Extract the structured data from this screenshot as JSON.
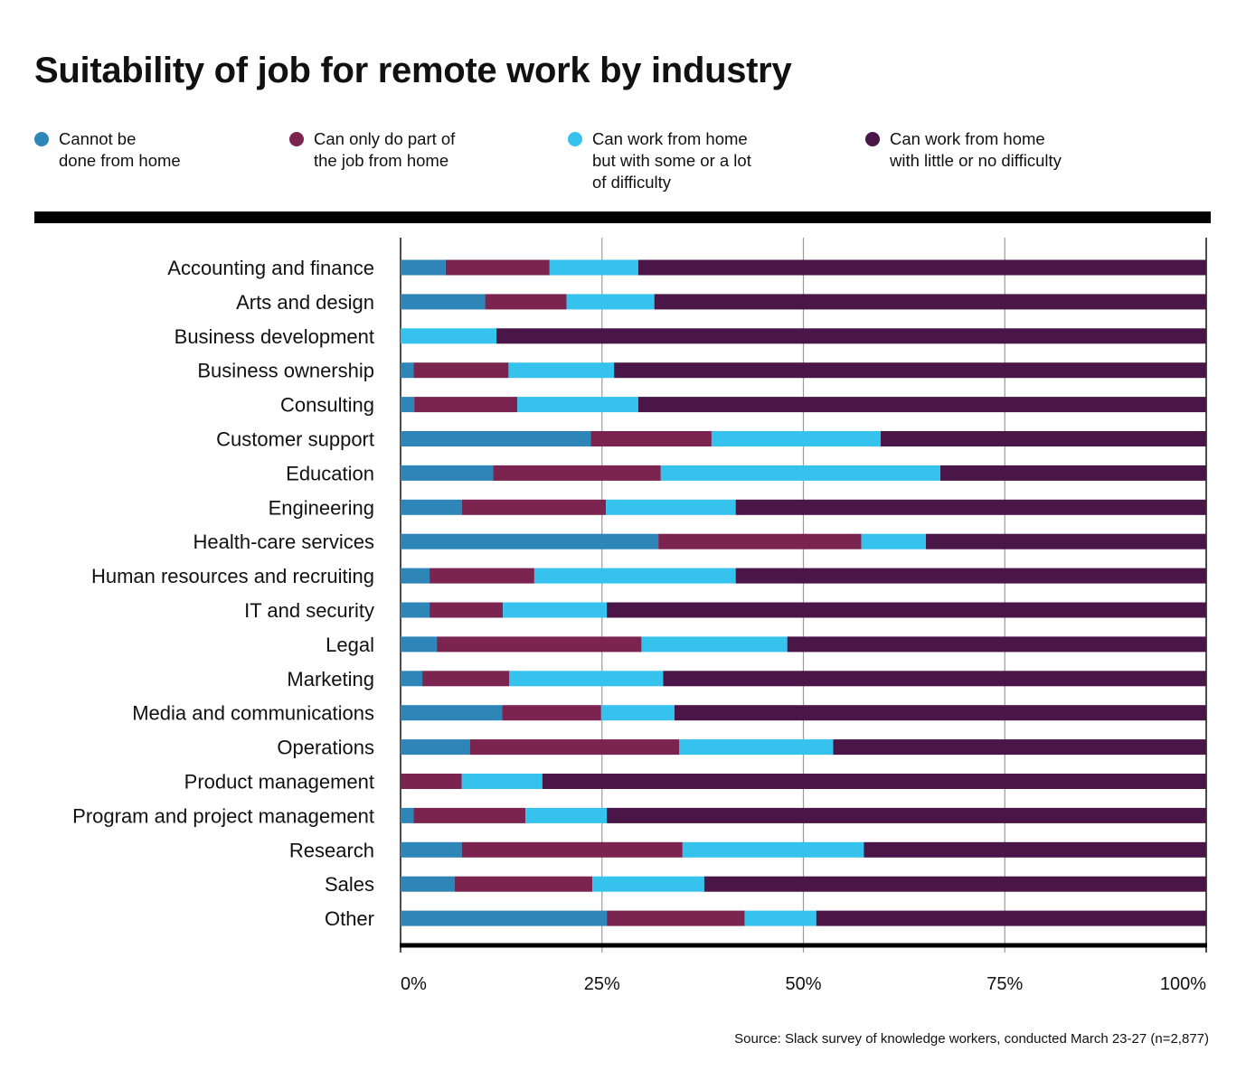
{
  "title": "Suitability of job for remote work by industry",
  "legend": [
    {
      "label": "Cannot be\ndone from home",
      "color": "#2e86b8"
    },
    {
      "label": "Can only do part of\nthe job from home",
      "color": "#7b2450"
    },
    {
      "label": "Can work from home\nbut with some or a lot\nof difficulty",
      "color": "#35c3ee"
    },
    {
      "label": "Can work from home\nwith little or no difficulty",
      "color": "#4a1547"
    }
  ],
  "source": "Source: Slack survey of knowledge workers, conducted March 23-27 (n=2,877)",
  "chart_data": {
    "type": "bar",
    "orientation": "horizontal",
    "stacked": true,
    "title": "Suitability of job for remote work by industry",
    "xlabel": "",
    "ylabel": "",
    "xlim": [
      0,
      100
    ],
    "xticks": [
      0,
      25,
      50,
      75,
      100
    ],
    "xtick_labels": [
      "0%",
      "25%",
      "50%",
      "75%",
      "100%"
    ],
    "grid": true,
    "categories": [
      "Accounting and finance",
      "Arts and design",
      "Business development",
      "Business ownership",
      "Consulting",
      "Customer support",
      "Education",
      "Engineering",
      "Health-care services",
      "Human resources and recruiting",
      "IT and security",
      "Legal",
      "Marketing",
      "Media and communications",
      "Operations",
      "Product management",
      "Program and project management",
      "Research",
      "Sales",
      "Other"
    ],
    "series": [
      {
        "name": "Cannot be done from home",
        "color": "#2e86b8",
        "values": [
          5.6,
          10.5,
          0,
          1.6,
          1.7,
          23.6,
          11.5,
          7.6,
          32.0,
          3.6,
          3.6,
          4.5,
          2.7,
          12.6,
          8.6,
          0,
          1.6,
          7.6,
          6.7,
          25.6
        ]
      },
      {
        "name": "Can only do part of the job from home",
        "color": "#7b2450",
        "values": [
          12.9,
          10.1,
          0,
          11.8,
          12.8,
          15.0,
          20.8,
          17.9,
          25.2,
          13.0,
          9.1,
          25.4,
          10.8,
          12.3,
          26.0,
          7.6,
          13.9,
          27.4,
          17.1,
          17.1
        ]
      },
      {
        "name": "Can work from home but with some or a lot of difficulty",
        "color": "#35c3ee",
        "values": [
          11.0,
          10.9,
          11.9,
          13.1,
          15.0,
          21.0,
          34.7,
          16.1,
          8.0,
          25.0,
          12.9,
          18.1,
          19.1,
          9.1,
          19.1,
          10.0,
          10.1,
          22.5,
          13.9,
          8.9
        ]
      },
      {
        "name": "Can work from home with little or no difficulty",
        "color": "#4a1547",
        "values": [
          70.5,
          68.5,
          88.1,
          73.5,
          70.5,
          40.4,
          33.0,
          58.4,
          34.8,
          58.4,
          74.4,
          52.0,
          67.4,
          66.0,
          46.3,
          82.4,
          74.4,
          42.5,
          62.3,
          48.4
        ]
      }
    ]
  }
}
